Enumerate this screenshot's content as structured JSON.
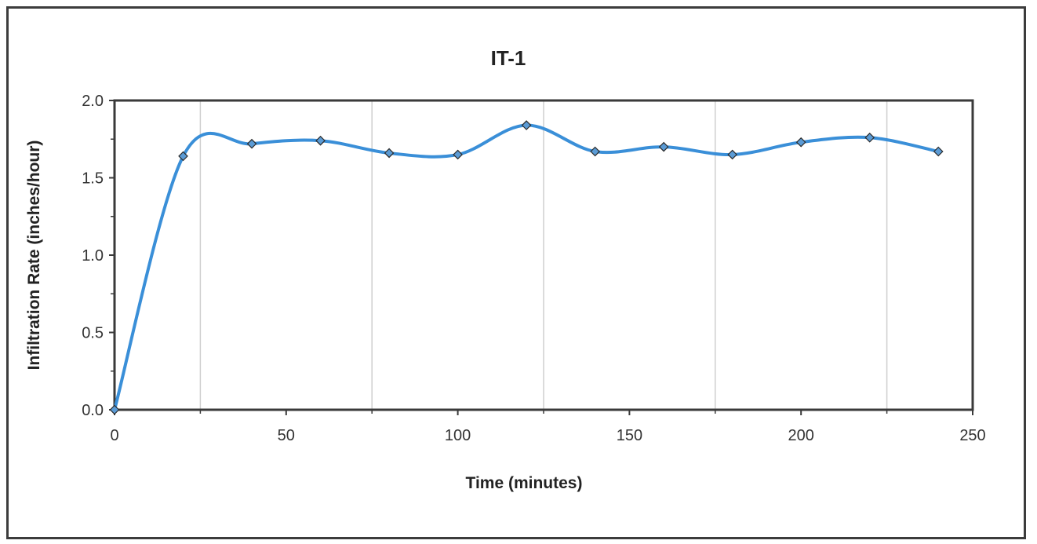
{
  "chart_data": {
    "type": "line",
    "title": "IT-1",
    "xlabel": "Time (minutes)",
    "ylabel": "Infiltration Rate (inches/hour)",
    "xlim": [
      0,
      250
    ],
    "ylim": [
      0.0,
      2.0
    ],
    "x_ticks": [
      "0",
      "50",
      "100",
      "150",
      "200",
      "250"
    ],
    "y_ticks": [
      "0.0",
      "0.5",
      "1.0",
      "1.5",
      "2.0"
    ],
    "grid": "vertical faint",
    "series": [
      {
        "x": [
          0,
          20,
          40,
          60,
          80,
          100,
          120,
          140,
          160,
          180,
          200,
          220,
          240
        ],
        "values": [
          0.0,
          1.64,
          1.72,
          1.74,
          1.66,
          1.65,
          1.84,
          1.67,
          1.7,
          1.65,
          1.73,
          1.76,
          1.67
        ],
        "color": "#3a8fd8",
        "marker": "diamond",
        "marker_color": "#5b9bd5",
        "smooth": true
      }
    ]
  }
}
